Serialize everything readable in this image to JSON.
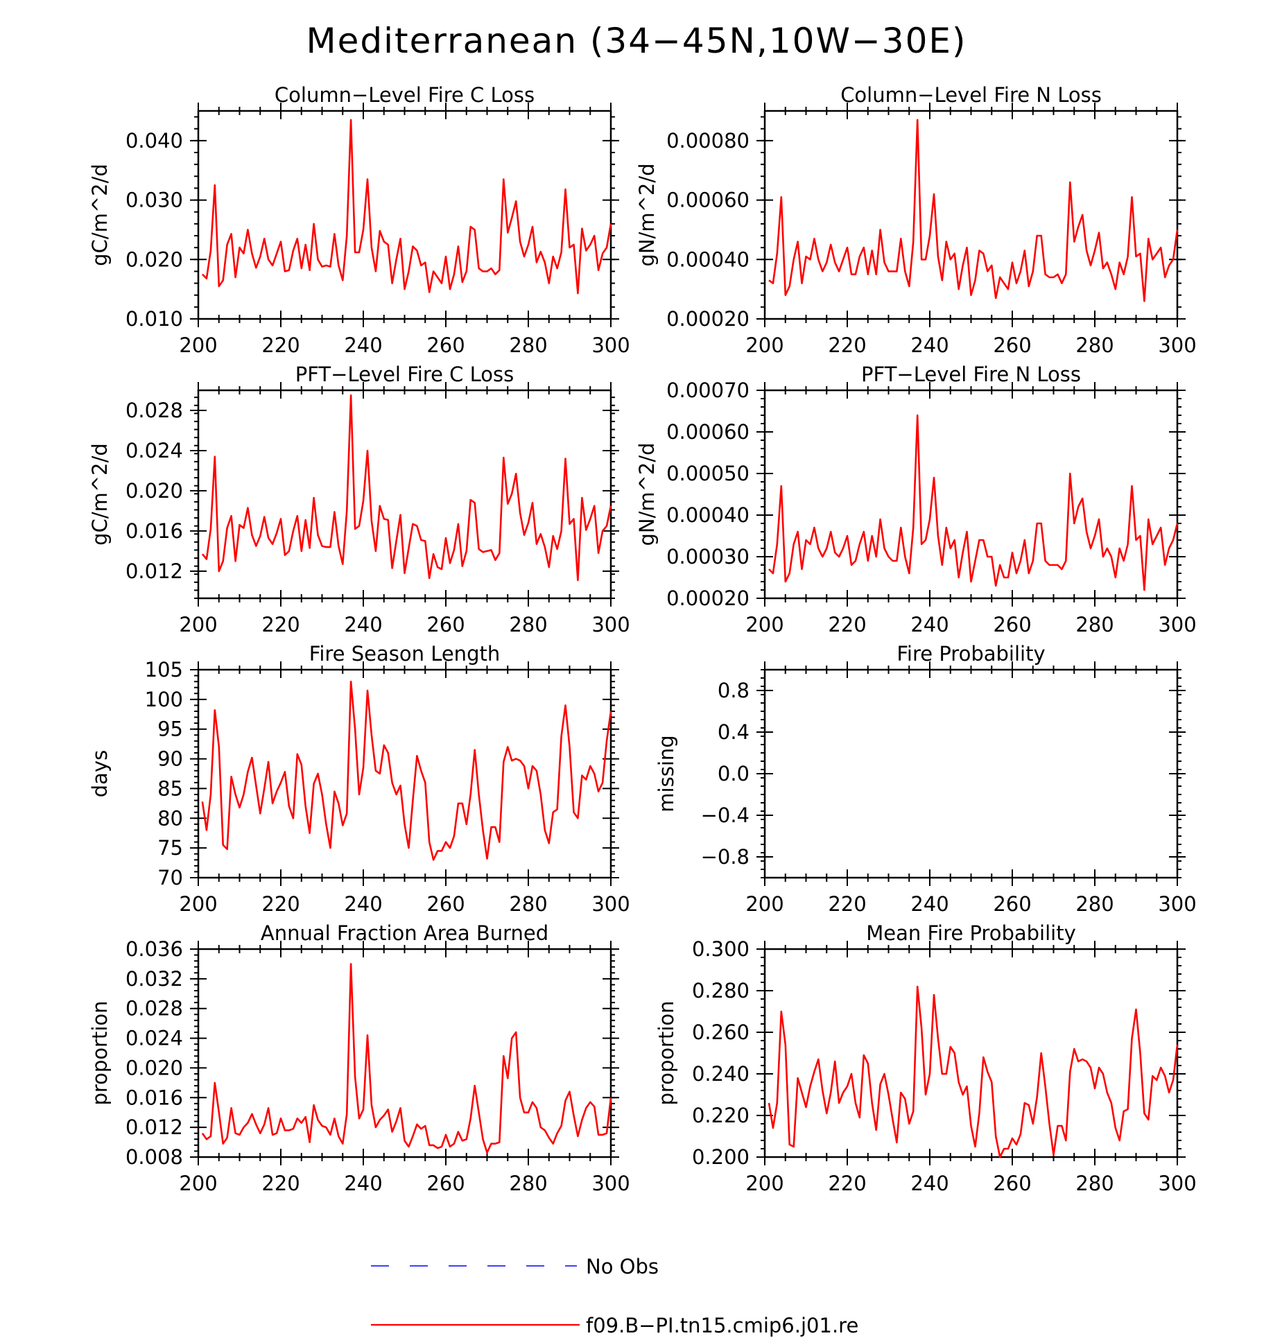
{
  "figure_title": "Mediterranean (34−45N,10W−30E)",
  "legend": {
    "items": [
      {
        "label": "No Obs",
        "color": "#4040ff",
        "dash": true
      },
      {
        "label": "f09.B−PI.tn15.cmip6.j01.re",
        "color": "#ff0000",
        "dash": false
      }
    ]
  },
  "chart_data": [
    {
      "type": "line",
      "title": "Column−Level Fire C Loss",
      "ylabel": "gC/m^2/d",
      "xlim": [
        200,
        300
      ],
      "ylim": [
        0.01,
        0.045
      ],
      "xticks": [
        "200",
        "220",
        "240",
        "260",
        "280",
        "300"
      ],
      "yticks": [
        0.01,
        0.02,
        0.03,
        0.04
      ],
      "ytick_labels": [
        "0.010",
        "0.020",
        "0.030",
        "0.040"
      ],
      "x_start": 201,
      "series": [
        {
          "name": "f09.B−PI.tn15.cmip6.j01.re",
          "color": "#ff0000",
          "values": [
            0.0175,
            0.0168,
            0.0215,
            0.0325,
            0.0155,
            0.0165,
            0.0225,
            0.0243,
            0.017,
            0.022,
            0.021,
            0.025,
            0.021,
            0.0186,
            0.0205,
            0.0235,
            0.02,
            0.019,
            0.021,
            0.023,
            0.018,
            0.0182,
            0.0215,
            0.0235,
            0.0185,
            0.0225,
            0.0182,
            0.026,
            0.02,
            0.0188,
            0.019,
            0.0188,
            0.0243,
            0.019,
            0.0165,
            0.024,
            0.0435,
            0.0212,
            0.0212,
            0.025,
            0.0335,
            0.022,
            0.018,
            0.0248,
            0.023,
            0.0225,
            0.016,
            0.02,
            0.0235,
            0.015,
            0.018,
            0.0222,
            0.0215,
            0.019,
            0.0195,
            0.0145,
            0.018,
            0.017,
            0.016,
            0.0205,
            0.015,
            0.0175,
            0.0222,
            0.0162,
            0.018,
            0.0255,
            0.025,
            0.0185,
            0.018,
            0.018,
            0.0185,
            0.0175,
            0.0182,
            0.0335,
            0.0245,
            0.027,
            0.0298,
            0.023,
            0.0205,
            0.0225,
            0.0255,
            0.0195,
            0.0213,
            0.0195,
            0.016,
            0.0205,
            0.0185,
            0.0212,
            0.0318,
            0.022,
            0.0225,
            0.0143,
            0.0252,
            0.0215,
            0.0225,
            0.024,
            0.0182,
            0.021,
            0.022,
            0.026
          ]
        }
      ]
    },
    {
      "type": "line",
      "title": "Column−Level Fire N Loss",
      "ylabel": "gN/m^2/d",
      "xlim": [
        200,
        300
      ],
      "ylim": [
        0.0002,
        0.0009
      ],
      "xticks": [
        "200",
        "220",
        "240",
        "260",
        "280",
        "300"
      ],
      "yticks": [
        0.0002,
        0.0004,
        0.0006,
        0.0008
      ],
      "ytick_labels": [
        "0.00020",
        "0.00040",
        "0.00060",
        "0.00080"
      ],
      "x_start": 201,
      "series": [
        {
          "name": "f09.B−PI.tn15.cmip6.j01.re",
          "color": "#ff0000",
          "values": [
            0.00033,
            0.00032,
            0.00042,
            0.00061,
            0.00028,
            0.00031,
            0.0004,
            0.00046,
            0.00032,
            0.00041,
            0.0004,
            0.00047,
            0.0004,
            0.00036,
            0.00039,
            0.00045,
            0.00039,
            0.00036,
            0.0004,
            0.00044,
            0.00035,
            0.00035,
            0.00041,
            0.00044,
            0.00035,
            0.00043,
            0.00035,
            0.0005,
            0.00039,
            0.00036,
            0.00036,
            0.00036,
            0.00047,
            0.00036,
            0.00031,
            0.00046,
            0.00087,
            0.0004,
            0.0004,
            0.00048,
            0.00062,
            0.00041,
            0.00033,
            0.00046,
            0.0004,
            0.00042,
            0.0003,
            0.00038,
            0.00044,
            0.00028,
            0.00033,
            0.00043,
            0.00042,
            0.00036,
            0.00038,
            0.00027,
            0.00034,
            0.00032,
            0.0003,
            0.00039,
            0.00032,
            0.00036,
            0.00043,
            0.00031,
            0.00036,
            0.00048,
            0.00048,
            0.00035,
            0.00034,
            0.00034,
            0.00035,
            0.00032,
            0.00035,
            0.00066,
            0.00046,
            0.00051,
            0.00055,
            0.00043,
            0.00038,
            0.00043,
            0.00049,
            0.00037,
            0.00039,
            0.00035,
            0.0003,
            0.00039,
            0.00035,
            0.00041,
            0.00061,
            0.00041,
            0.00042,
            0.00026,
            0.00047,
            0.0004,
            0.00042,
            0.00044,
            0.00034,
            0.00038,
            0.0004,
            0.0005
          ]
        }
      ]
    },
    {
      "type": "line",
      "title": "PFT−Level Fire C Loss",
      "ylabel": "gC/m^2/d",
      "xlim": [
        200,
        300
      ],
      "ylim": [
        0.0093,
        0.03
      ],
      "xticks": [
        "200",
        "220",
        "240",
        "260",
        "280",
        "300"
      ],
      "yticks": [
        0.012,
        0.016,
        0.02,
        0.024,
        0.028
      ],
      "ytick_labels": [
        "0.012",
        "0.016",
        "0.020",
        "0.024",
        "0.028"
      ],
      "x_start": 201,
      "series": [
        {
          "name": "f09.B−PI.tn15.cmip6.j01.re",
          "color": "#ff0000",
          "values": [
            0.0137,
            0.0132,
            0.0162,
            0.0234,
            0.012,
            0.013,
            0.0163,
            0.0175,
            0.013,
            0.0166,
            0.0163,
            0.0183,
            0.0156,
            0.0145,
            0.0155,
            0.0174,
            0.0153,
            0.0147,
            0.0158,
            0.0172,
            0.0136,
            0.014,
            0.016,
            0.0175,
            0.014,
            0.0171,
            0.0143,
            0.0193,
            0.0156,
            0.0145,
            0.0144,
            0.0144,
            0.0179,
            0.0145,
            0.0127,
            0.018,
            0.0295,
            0.0162,
            0.0165,
            0.019,
            0.024,
            0.017,
            0.014,
            0.0185,
            0.0172,
            0.0171,
            0.0123,
            0.015,
            0.0176,
            0.0118,
            0.0143,
            0.0167,
            0.0165,
            0.0151,
            0.015,
            0.0113,
            0.0137,
            0.0124,
            0.0122,
            0.0153,
            0.0128,
            0.0141,
            0.0167,
            0.0125,
            0.014,
            0.0191,
            0.0188,
            0.0142,
            0.0139,
            0.014,
            0.0141,
            0.0131,
            0.0138,
            0.0233,
            0.0187,
            0.0197,
            0.0217,
            0.0178,
            0.0156,
            0.0168,
            0.0188,
            0.0147,
            0.0157,
            0.0144,
            0.0124,
            0.0155,
            0.0142,
            0.016,
            0.0232,
            0.0167,
            0.0172,
            0.0111,
            0.0193,
            0.0161,
            0.0172,
            0.0185,
            0.0138,
            0.016,
            0.0165,
            0.0185
          ]
        }
      ]
    },
    {
      "type": "line",
      "title": "PFT−Level Fire N Loss",
      "ylabel": "gN/m^2/d",
      "xlim": [
        200,
        300
      ],
      "ylim": [
        0.0002,
        0.0007
      ],
      "xticks": [
        "200",
        "220",
        "240",
        "260",
        "280",
        "300"
      ],
      "yticks": [
        0.0002,
        0.0003,
        0.0004,
        0.0005,
        0.0006,
        0.0007
      ],
      "ytick_labels": [
        "0.00020",
        "0.00030",
        "0.00040",
        "0.00050",
        "0.00060",
        "0.00070"
      ],
      "x_start": 201,
      "series": [
        {
          "name": "f09.B−PI.tn15.cmip6.j01.re",
          "color": "#ff0000",
          "values": [
            0.00027,
            0.00026,
            0.00033,
            0.00047,
            0.00024,
            0.00026,
            0.00033,
            0.00036,
            0.00027,
            0.00034,
            0.00033,
            0.00037,
            0.00032,
            0.0003,
            0.00032,
            0.00036,
            0.00031,
            0.0003,
            0.00032,
            0.00035,
            0.00028,
            0.00029,
            0.00033,
            0.00036,
            0.00029,
            0.00035,
            0.0003,
            0.00039,
            0.00032,
            0.0003,
            0.00029,
            0.00029,
            0.00037,
            0.0003,
            0.00026,
            0.00037,
            0.00064,
            0.00033,
            0.00034,
            0.00039,
            0.00049,
            0.00035,
            0.00028,
            0.00037,
            0.00032,
            0.00034,
            0.00025,
            0.00031,
            0.00036,
            0.00024,
            0.00029,
            0.00034,
            0.00034,
            0.0003,
            0.0003,
            0.00023,
            0.00028,
            0.00025,
            0.00025,
            0.00031,
            0.00026,
            0.00029,
            0.00034,
            0.00026,
            0.00029,
            0.00038,
            0.00038,
            0.00029,
            0.00028,
            0.00028,
            0.00028,
            0.00027,
            0.00029,
            0.0005,
            0.00038,
            0.00042,
            0.00044,
            0.00036,
            0.00032,
            0.00035,
            0.00039,
            0.0003,
            0.00032,
            0.0003,
            0.00025,
            0.00032,
            0.00029,
            0.00033,
            0.00047,
            0.00034,
            0.00035,
            0.00022,
            0.00039,
            0.00033,
            0.00035,
            0.00037,
            0.00028,
            0.00032,
            0.00034,
            0.00038
          ]
        }
      ]
    },
    {
      "type": "line",
      "title": "Fire Season Length",
      "ylabel": "days",
      "xlim": [
        200,
        300
      ],
      "ylim": [
        70,
        105
      ],
      "xticks": [
        "200",
        "220",
        "240",
        "260",
        "280",
        "300"
      ],
      "yticks": [
        70,
        75,
        80,
        85,
        90,
        95,
        100,
        105
      ],
      "ytick_labels": [
        "70",
        "75",
        "80",
        "85",
        "90",
        "95",
        "100",
        "105"
      ],
      "x_start": 201,
      "series": [
        {
          "name": "f09.B−PI.tn15.cmip6.j01.re",
          "color": "#ff0000",
          "values": [
            82.8,
            78.0,
            84.0,
            98.2,
            92.0,
            75.5,
            74.8,
            87.0,
            84.0,
            81.8,
            84.0,
            87.8,
            90.2,
            85.5,
            80.8,
            85.0,
            89.5,
            82.5,
            84.5,
            86.0,
            87.8,
            82.0,
            80.0,
            90.8,
            89.0,
            82.0,
            77.5,
            85.8,
            87.5,
            84.0,
            79.0,
            75.0,
            84.5,
            82.5,
            78.8,
            80.8,
            103.0,
            95.0,
            84.0,
            88.5,
            101.5,
            94.0,
            88.0,
            87.5,
            92.3,
            91.0,
            86.0,
            84.0,
            85.5,
            79.0,
            75.0,
            83.0,
            90.5,
            88.0,
            86.0,
            76.0,
            73.0,
            74.5,
            74.5,
            76.0,
            75.0,
            77.0,
            82.5,
            82.5,
            79.0,
            84.0,
            91.5,
            84.0,
            78.0,
            73.2,
            78.5,
            78.5,
            76.0,
            89.5,
            92.0,
            89.7,
            90.0,
            89.7,
            88.8,
            85.0,
            88.8,
            88.0,
            84.0,
            78.0,
            75.8,
            81.0,
            81.5,
            93.8,
            99.0,
            92.0,
            81.0,
            80.0,
            87.2,
            86.5,
            88.8,
            87.5,
            84.5,
            86.0,
            93.0,
            98.0
          ]
        }
      ]
    },
    {
      "type": "line",
      "title": "Fire Probability",
      "ylabel": "missing",
      "xlim": [
        200,
        300
      ],
      "ylim": [
        -1.0,
        1.0
      ],
      "xticks": [
        "200",
        "220",
        "240",
        "260",
        "280",
        "300"
      ],
      "yticks": [
        -0.8,
        -0.4,
        0.0,
        0.4,
        0.8
      ],
      "ytick_labels": [
        "−0.8",
        "−0.4",
        "0.0",
        "0.4",
        "0.8"
      ],
      "x_start": 201,
      "series": []
    },
    {
      "type": "line",
      "title": "Annual Fraction Area Burned",
      "ylabel": "proportion",
      "xlim": [
        200,
        300
      ],
      "ylim": [
        0.008,
        0.036
      ],
      "xticks": [
        "200",
        "220",
        "240",
        "260",
        "280",
        "300"
      ],
      "yticks": [
        0.008,
        0.012,
        0.016,
        0.02,
        0.024,
        0.028,
        0.032,
        0.036
      ],
      "ytick_labels": [
        "0.008",
        "0.012",
        "0.016",
        "0.020",
        "0.024",
        "0.028",
        "0.032",
        "0.036"
      ],
      "x_start": 201,
      "series": [
        {
          "name": "f09.B−PI.tn15.cmip6.j01.re",
          "color": "#ff0000",
          "values": [
            0.0112,
            0.0104,
            0.0108,
            0.018,
            0.014,
            0.0098,
            0.0106,
            0.0146,
            0.0112,
            0.011,
            0.012,
            0.0126,
            0.0138,
            0.0124,
            0.0112,
            0.0124,
            0.0146,
            0.011,
            0.0112,
            0.0132,
            0.0116,
            0.0116,
            0.0118,
            0.0132,
            0.0126,
            0.0134,
            0.01,
            0.015,
            0.013,
            0.0122,
            0.012,
            0.011,
            0.0132,
            0.0108,
            0.0098,
            0.0138,
            0.034,
            0.0188,
            0.0132,
            0.0144,
            0.0244,
            0.015,
            0.012,
            0.013,
            0.0136,
            0.0144,
            0.0114,
            0.0128,
            0.0146,
            0.0102,
            0.0094,
            0.0108,
            0.0124,
            0.0118,
            0.0122,
            0.0096,
            0.0096,
            0.0092,
            0.0094,
            0.011,
            0.0094,
            0.0098,
            0.0114,
            0.0102,
            0.0104,
            0.0132,
            0.0176,
            0.014,
            0.0104,
            0.0086,
            0.0098,
            0.0098,
            0.01,
            0.0216,
            0.0186,
            0.024,
            0.0248,
            0.016,
            0.014,
            0.014,
            0.0154,
            0.0146,
            0.012,
            0.0116,
            0.0106,
            0.0098,
            0.0112,
            0.0122,
            0.0156,
            0.0168,
            0.0136,
            0.0108,
            0.013,
            0.0146,
            0.0154,
            0.0148,
            0.011,
            0.011,
            0.0112,
            0.016
          ]
        }
      ]
    },
    {
      "type": "line",
      "title": "Mean Fire Probability",
      "ylabel": "proportion",
      "xlim": [
        200,
        300
      ],
      "ylim": [
        0.2,
        0.3
      ],
      "xticks": [
        "200",
        "220",
        "240",
        "260",
        "280",
        "300"
      ],
      "yticks": [
        0.2,
        0.22,
        0.24,
        0.26,
        0.28,
        0.3
      ],
      "ytick_labels": [
        "0.200",
        "0.220",
        "0.240",
        "0.260",
        "0.280",
        "0.300"
      ],
      "x_start": 201,
      "series": [
        {
          "name": "f09.B−PI.tn15.cmip6.j01.re",
          "color": "#ff0000",
          "values": [
            0.226,
            0.214,
            0.226,
            0.27,
            0.254,
            0.206,
            0.205,
            0.238,
            0.231,
            0.224,
            0.234,
            0.241,
            0.247,
            0.232,
            0.221,
            0.231,
            0.246,
            0.226,
            0.231,
            0.234,
            0.24,
            0.226,
            0.219,
            0.249,
            0.245,
            0.226,
            0.213,
            0.235,
            0.24,
            0.23,
            0.218,
            0.207,
            0.231,
            0.228,
            0.216,
            0.222,
            0.282,
            0.262,
            0.23,
            0.24,
            0.278,
            0.257,
            0.24,
            0.24,
            0.253,
            0.25,
            0.236,
            0.23,
            0.234,
            0.215,
            0.205,
            0.221,
            0.248,
            0.241,
            0.236,
            0.21,
            0.2,
            0.204,
            0.204,
            0.209,
            0.206,
            0.211,
            0.226,
            0.225,
            0.216,
            0.229,
            0.25,
            0.234,
            0.216,
            0.201,
            0.215,
            0.215,
            0.208,
            0.241,
            0.252,
            0.246,
            0.247,
            0.246,
            0.243,
            0.233,
            0.243,
            0.24,
            0.231,
            0.226,
            0.214,
            0.208,
            0.222,
            0.223,
            0.257,
            0.271,
            0.25,
            0.221,
            0.218,
            0.239,
            0.237,
            0.243,
            0.239,
            0.231,
            0.237,
            0.254
          ]
        }
      ]
    }
  ]
}
